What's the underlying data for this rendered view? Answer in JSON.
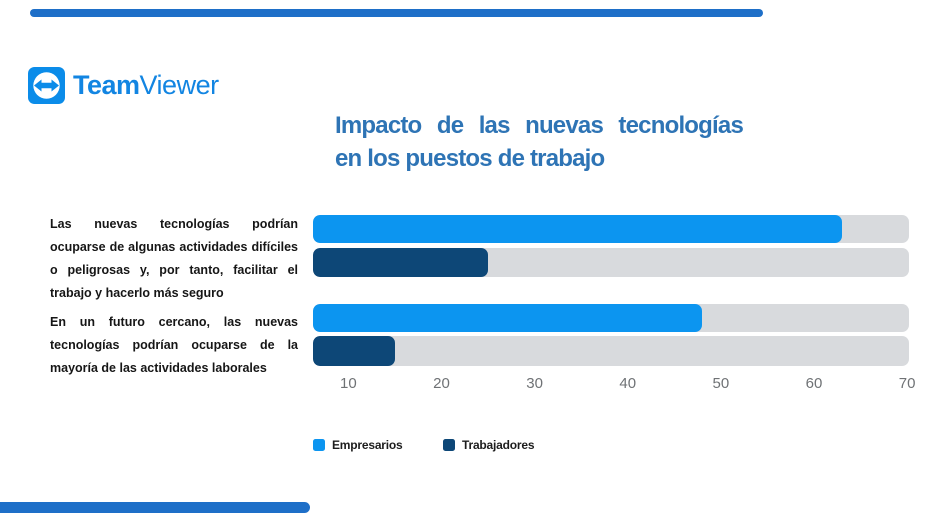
{
  "brand": {
    "logo_bold": "Team",
    "logo_light": "Viewer"
  },
  "title": {
    "line1": "Impacto de las nuevas tecnologías",
    "line2": "en los puestos de trabajo"
  },
  "chart_data": {
    "type": "bar",
    "orientation": "horizontal",
    "title": "Impacto de las nuevas tecnologías en los puestos de trabajo",
    "categories": [
      "Las nuevas tecnologías podrían ocuparse de algunas actividades difíciles o peligrosas y, por tanto, facilitar el trabajo y hacerlo más seguro",
      "En un futuro cercano, las nuevas tecnologías podrían ocuparse de la mayoría de las actividades laborales"
    ],
    "series": [
      {
        "name": "Empresarios",
        "color": "#0C95F0",
        "values": [
          63,
          48
        ]
      },
      {
        "name": "Trabajadores",
        "color": "#0D4777",
        "values": [
          25,
          15
        ]
      }
    ],
    "axis": {
      "min": 6.2,
      "max": 70.2,
      "ticks": [
        10,
        20,
        30,
        40,
        50,
        60,
        70
      ]
    },
    "track_color": "#D8DADD",
    "grid": false,
    "legend_position": "bottom-left"
  },
  "colors": {
    "brand_text_blue": "#1285E2",
    "logo_box_blue": "#0B8CE9",
    "title_blue": "#2E74B5",
    "accent_bar_blue": "#1E6FC8",
    "axis_label_gray": "#6F7275",
    "category_label_color": "#161616",
    "legend_text_color": "#1D1D1D"
  }
}
